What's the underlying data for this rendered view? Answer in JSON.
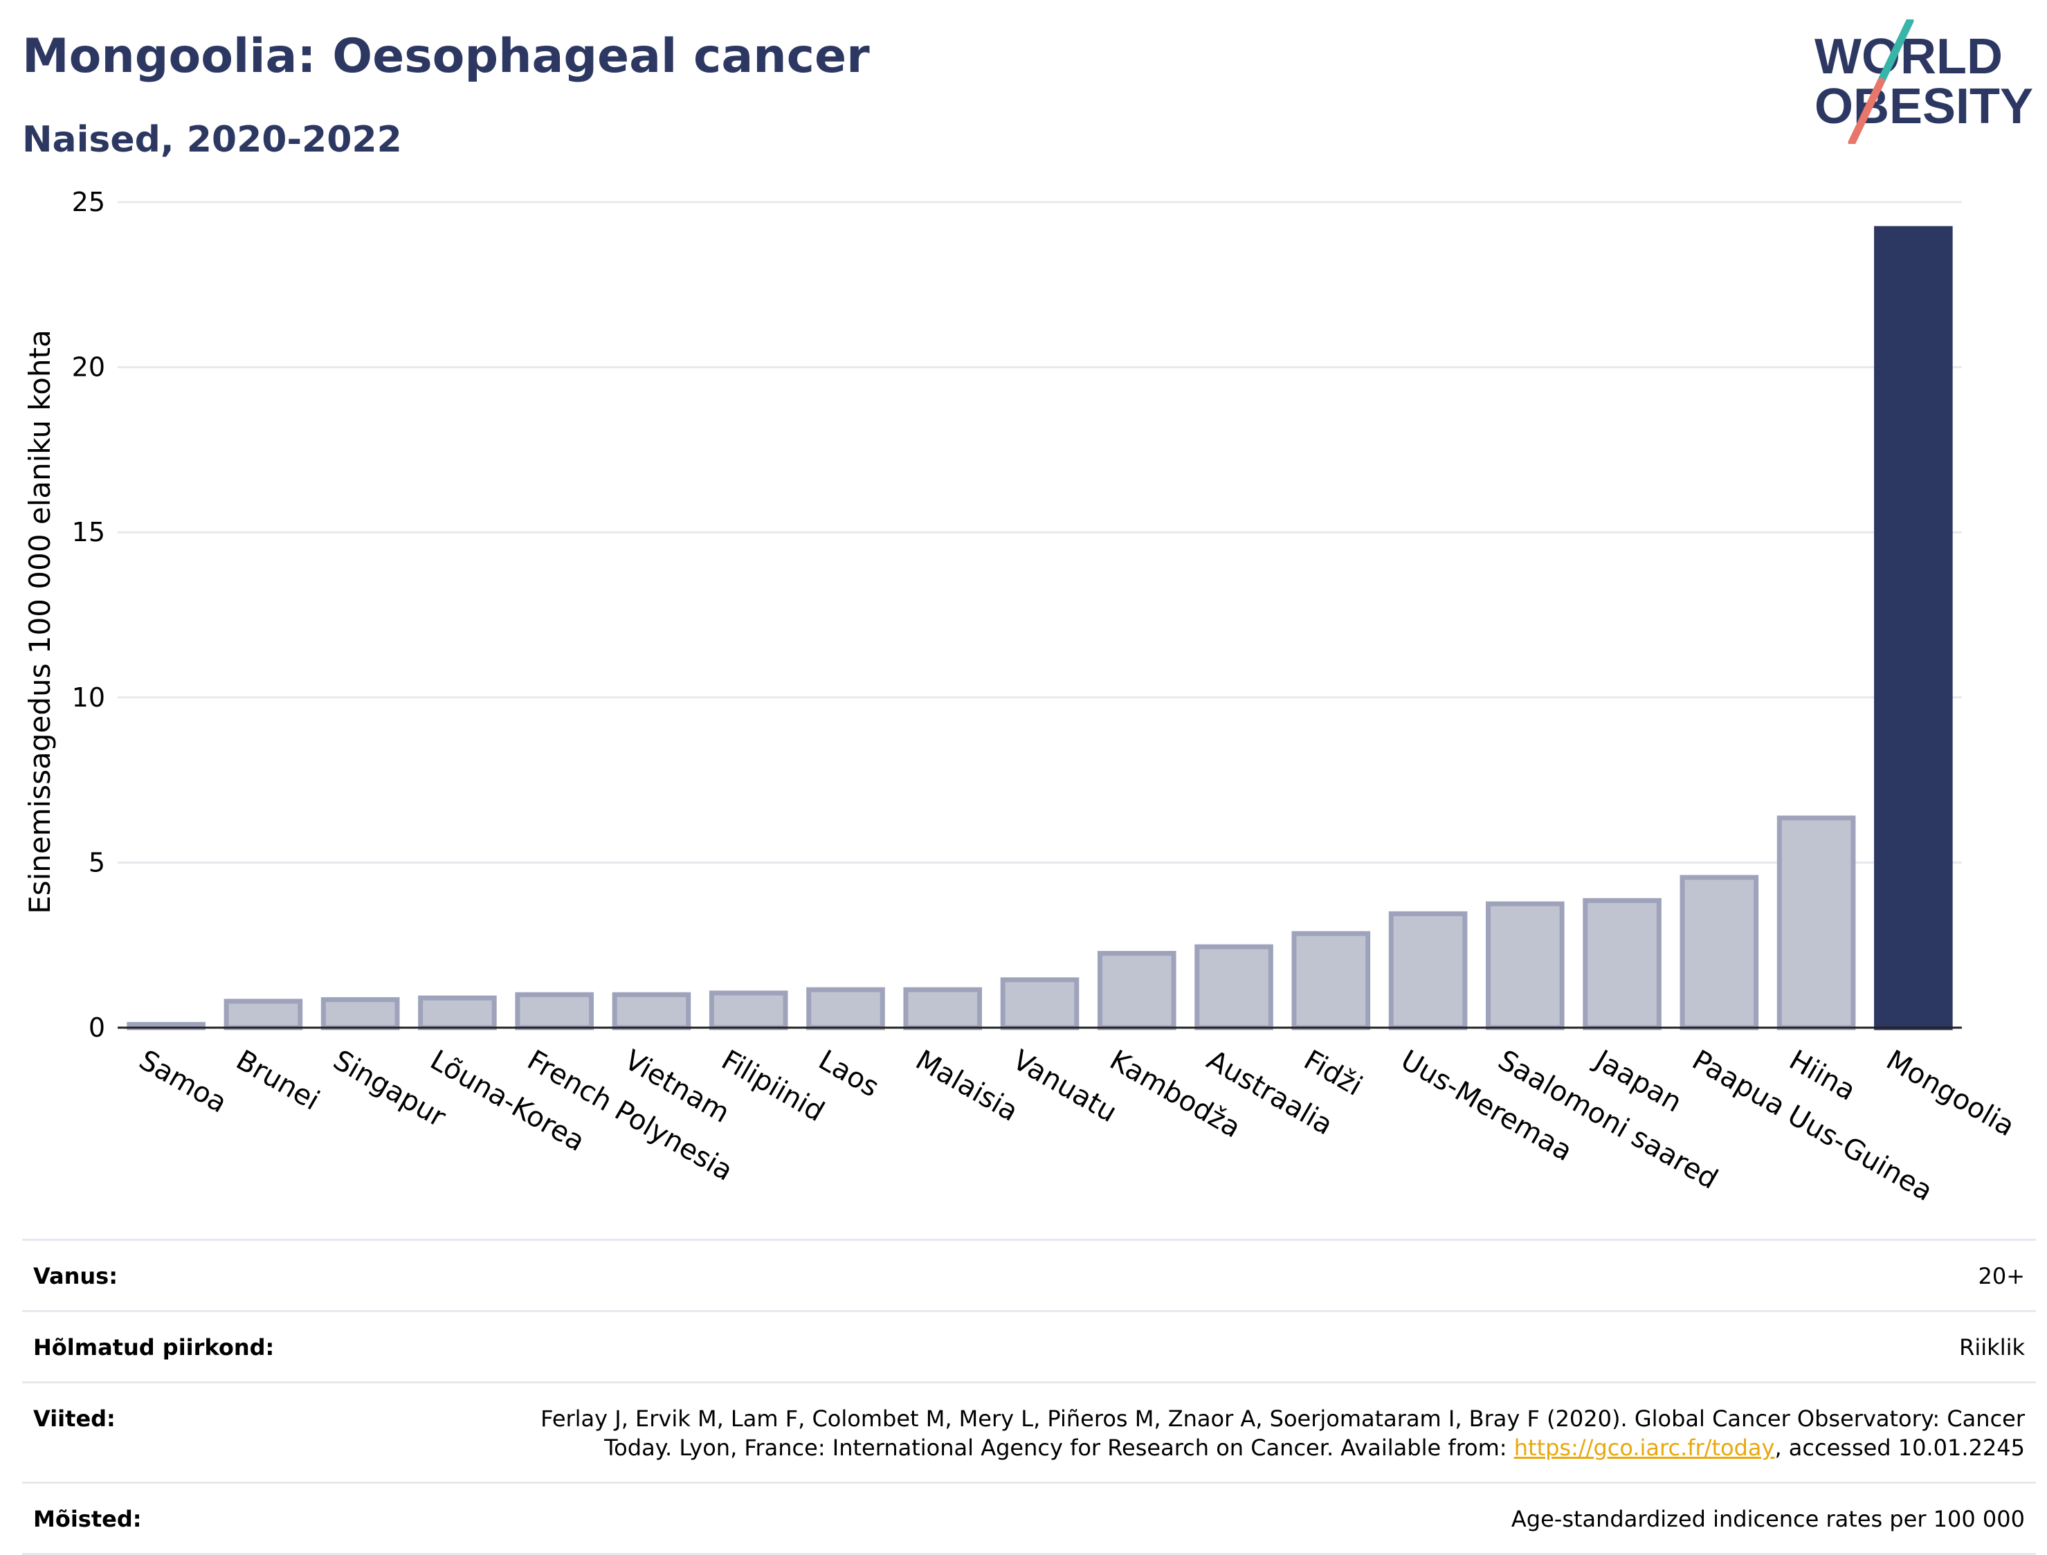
{
  "header": {
    "title": "Mongoolia: Oesophageal cancer",
    "subtitle": "Naised, 2020-2022"
  },
  "logo": {
    "line1": "WORLD",
    "line2": "OBESITY"
  },
  "colors": {
    "highlight": "#2d3862",
    "bar": "#c0c4d1",
    "bar_edge": "#9ea3bb",
    "title": "#2d3862"
  },
  "chart_data": {
    "type": "bar",
    "ylabel": "Esinemissagedus 100 000 elaniku kohta",
    "ylim": [
      0,
      25
    ],
    "yticks": [
      0,
      5,
      10,
      15,
      20,
      25
    ],
    "grid": true,
    "categories": [
      "Samoa",
      "Brunei",
      "Singapur",
      "Lõuna-Korea",
      "French Polynesia",
      "Vietnam",
      "Filipiinid",
      "Laos",
      "Malaisia",
      "Vanuatu",
      "Kambodža",
      "Austraalia",
      "Fidži",
      "Uus-Meremaa",
      "Saalomoni saared",
      "Jaapan",
      "Paapua Uus-Guinea",
      "Hiina",
      "Mongoolia"
    ],
    "values": [
      0.1,
      0.8,
      0.85,
      0.9,
      1.0,
      1.0,
      1.05,
      1.15,
      1.15,
      1.45,
      2.25,
      2.45,
      2.85,
      3.45,
      3.75,
      3.85,
      4.55,
      6.35,
      24.2
    ],
    "highlight": "Mongoolia"
  },
  "meta": {
    "age_label": "Vanus:",
    "age_value": "20+",
    "coverage_label": "Hõlmatud piirkond:",
    "coverage_value": "Riiklik",
    "refs_label": "Viited:",
    "refs_text_before": "Ferlay J, Ervik M, Lam F, Colombet M, Mery L, Piñeros M, Znaor A, Soerjomataram I, Bray F (2020). Global Cancer Observatory: Cancer Today. Lyon, France: International Agency for Research on Cancer. Available from: ",
    "refs_link": "https://gco.iarc.fr/today",
    "refs_text_after": ", accessed 10.01.2245",
    "definitions_label": "Mõisted:",
    "definitions_value": "Age-standardized indicence rates per 100 000"
  }
}
